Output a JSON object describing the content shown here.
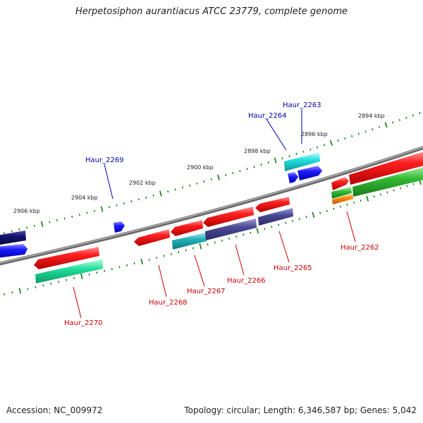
{
  "title": "Herpetosiphon aurantiacus ATCC 23779, complete genome",
  "footer": {
    "accession": "Accession: NC_009972",
    "summary": "Topology: circular; Length: 6,346,587 bp; Genes: 5,042"
  },
  "scale_labels": [
    "2906 kbp",
    "2904 kbp",
    "2902 kbp",
    "2900 kbp",
    "2898 kbp",
    "2896 kbp",
    "2894 kbp"
  ],
  "gene_labels": {
    "forward": [
      "Haur_2269",
      "Haur_2264",
      "Haur_2263"
    ],
    "reverse": [
      "Haur_2270",
      "Haur_2268",
      "Haur_2267",
      "Haur_2266",
      "Haur_2265",
      "Haur_2262"
    ]
  },
  "colors": {
    "forward_label": "#0000aa",
    "reverse_label": "#cc0000",
    "ticks": "#0a7a0a",
    "backbone": "#808080",
    "red_cds": "#ee1111",
    "blue_cds": "#1a1aff",
    "navy_cds": "#12126e",
    "cyan_cds": "#22dddd",
    "teal_cds": "#22b0b8",
    "slate_cds": "#4a4a96",
    "spring_cds": "#22dd99",
    "green_cds": "#33bb33",
    "orange_cds": "#ff8800"
  }
}
